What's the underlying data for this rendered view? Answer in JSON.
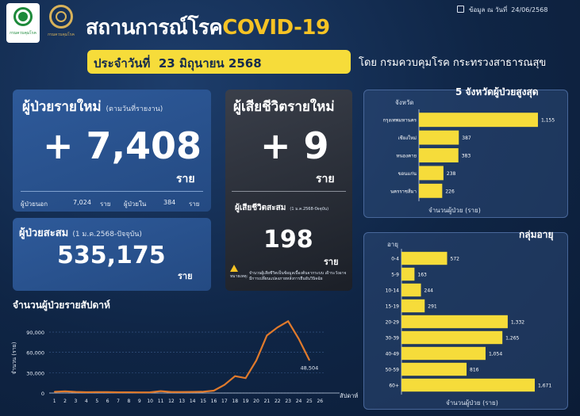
{
  "header": {
    "logo1_text": "กรมควบคุมโรค",
    "logo2_text": "กรมควบคุมโรค",
    "title_main": "สถานการณ์โรค",
    "title_covid": "COVID-19",
    "update_label": "ข้อมูล ณ วันที่",
    "update_date": "24/06/2568",
    "date_prefix": "ประจำวันที่",
    "date_value": "23 มิถุนายน 2568",
    "byline": "โดย กรมควบคุมโรค  กระทรวงสาธารณสุข"
  },
  "new_cases": {
    "title": "ผู้ป่วยรายใหม่",
    "subtitle": "(ตามวันที่รายงาน)",
    "value": "+ 7,408",
    "unit": "ราย",
    "outpatient_label": "ผู้ป่วยนอก",
    "outpatient_value": "7,024",
    "outpatient_unit": "ราย",
    "inpatient_label": "ผู้ป่วยใน",
    "inpatient_value": "384",
    "inpatient_unit": "ราย"
  },
  "cumulative": {
    "title": "ผู้ป่วยสะสม",
    "subtitle": "(1 ม.ค.2568-ปัจจุบัน)",
    "value": "535,175",
    "unit": "ราย"
  },
  "deaths": {
    "title": "ผู้เสียชีวิตรายใหม่",
    "value": "+ 9",
    "unit": "ราย",
    "cum_label": "ผู้เสียชีวิตสะสม",
    "cum_sub": "(1 ม.ค.2568-ปัจจุบัน)",
    "cum_value": "198",
    "cum_unit": "ราย",
    "note_label": "หมายเหตุ:",
    "note_text": "จำนวนผู้เสียชีวิตเป็นข้อมูลเบื้องต้นจากระบบ เฝ้าระวังอาจมีการเปลี่ยนแปลงภายหลังการยืนยันวินิจฉัย"
  },
  "colors": {
    "bar": "#f6dc3a",
    "line": "#e07a2c",
    "accent": "#f6c324"
  },
  "chart_data": [
    {
      "type": "line",
      "title": "จำนวนผู้ป่วยรายสัปดาห์",
      "xlabel": "สัปดาห์",
      "ylabel": "จำนวน (ราย)",
      "x": [
        1,
        2,
        3,
        4,
        5,
        6,
        7,
        8,
        9,
        10,
        11,
        12,
        13,
        14,
        15,
        16,
        17,
        18,
        19,
        20,
        21,
        22,
        23,
        24,
        25
      ],
      "x_ticks": [
        1,
        2,
        3,
        4,
        5,
        6,
        7,
        8,
        9,
        10,
        11,
        12,
        13,
        14,
        15,
        16,
        17,
        18,
        19,
        20,
        21,
        22,
        23,
        24,
        25,
        26
      ],
      "values": [
        1800,
        2500,
        1600,
        1200,
        1400,
        1300,
        1000,
        1100,
        900,
        1000,
        2800,
        1500,
        1500,
        1600,
        1900,
        3500,
        12000,
        25000,
        22000,
        48000,
        85000,
        97000,
        106000,
        80000,
        48504
      ],
      "end_label": "48,504",
      "y_ticks": [
        0,
        30000,
        60000,
        90000
      ],
      "y_tick_labels": [
        "0",
        "30,000",
        "60,000",
        "90,000"
      ],
      "ylim": [
        0,
        110000
      ],
      "xlim": [
        0.5,
        26.5
      ]
    },
    {
      "type": "bar",
      "orientation": "horizontal",
      "title": "5  จังหวัดผู้ป่วยสูงสุด",
      "category_header": "จังหวัด",
      "xlabel": "จำนวนผู้ป่วย (ราย)",
      "categories": [
        "กรุงเทพมหานคร",
        "เชียงใหม่",
        "หนองคาย",
        "ขอนแก่น",
        "นครราชสีมา"
      ],
      "values": [
        1155,
        387,
        383,
        238,
        226
      ],
      "value_labels": [
        "1,155",
        "387",
        "383",
        "238",
        "226"
      ],
      "xlim": [
        0,
        1155
      ]
    },
    {
      "type": "bar",
      "orientation": "horizontal",
      "title": "กลุ่มอายุ",
      "category_header": "อายุ",
      "xlabel": "จำนวนผู้ป่วย (ราย)",
      "categories": [
        "0-4",
        "5-9",
        "10-14",
        "15-19",
        "20-29",
        "30-39",
        "40-49",
        "50-59",
        "60+"
      ],
      "values": [
        572,
        163,
        244,
        291,
        1332,
        1265,
        1054,
        816,
        1671
      ],
      "value_labels": [
        "572",
        "163",
        "244",
        "291",
        "1,332",
        "1,265",
        "1,054",
        "816",
        "1,671"
      ],
      "xlim": [
        0,
        1671
      ]
    }
  ]
}
